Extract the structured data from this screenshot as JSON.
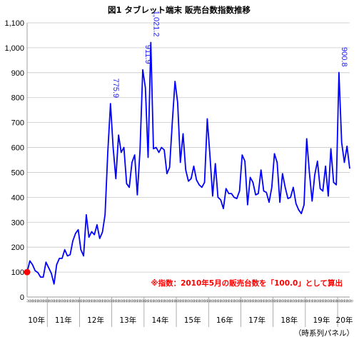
{
  "chart_data": {
    "type": "line",
    "title": "図1 タブレット端末 販売台数指数推移",
    "note": "※指数：2010年5月の販売台数を「100.0」として算出",
    "source": "（時系列パネル）",
    "ylim": [
      0,
      1100
    ],
    "yticks": [
      "0",
      "100",
      "200",
      "300",
      "400",
      "500",
      "600",
      "700",
      "800",
      "900",
      "1,000",
      "1,100"
    ],
    "ytick_values": [
      0,
      100,
      200,
      300,
      400,
      500,
      600,
      700,
      800,
      900,
      1000,
      1100
    ],
    "year_labels": [
      "10年",
      "11年",
      "12年",
      "13年",
      "14年",
      "15年",
      "16年",
      "17年",
      "18年",
      "19年",
      "20年"
    ],
    "year_start_index": [
      0,
      8,
      20,
      32,
      44,
      56,
      68,
      80,
      92,
      104,
      116
    ],
    "month_tick_label": "月",
    "line_color": "#0000ff",
    "start_marker_color": "#ff0000",
    "grid": true,
    "series": [
      {
        "values": [
          100,
          145,
          130,
          105,
          98,
          80,
          80,
          140,
          118,
          95,
          52,
          130,
          155,
          155,
          190,
          165,
          170,
          225,
          255,
          270,
          190,
          165,
          330,
          240,
          262,
          250,
          290,
          235,
          260,
          330,
          580,
          775.9,
          600,
          475,
          650,
          580,
          600,
          455,
          440,
          540,
          570,
          410,
          590,
          911.9,
          840,
          560,
          1021.2,
          595,
          600,
          580,
          600,
          590,
          495,
          520,
          700,
          865,
          780,
          540,
          655,
          510,
          465,
          475,
          525,
          470,
          450,
          440,
          460,
          715,
          570,
          405,
          535,
          400,
          390,
          355,
          435,
          415,
          415,
          400,
          395,
          425,
          570,
          545,
          370,
          480,
          460,
          410,
          415,
          510,
          425,
          420,
          380,
          440,
          575,
          540,
          380,
          495,
          440,
          395,
          400,
          440,
          375,
          350,
          335,
          370,
          635,
          500,
          385,
          490,
          545,
          435,
          425,
          525,
          405,
          595,
          460,
          450,
          900.8,
          620,
          540,
          605,
          515
        ]
      }
    ],
    "peak_labels": [
      "775.9",
      "911.9",
      "1,021.2",
      "900.8"
    ],
    "peak_indices": [
      31,
      43,
      46,
      116
    ]
  }
}
